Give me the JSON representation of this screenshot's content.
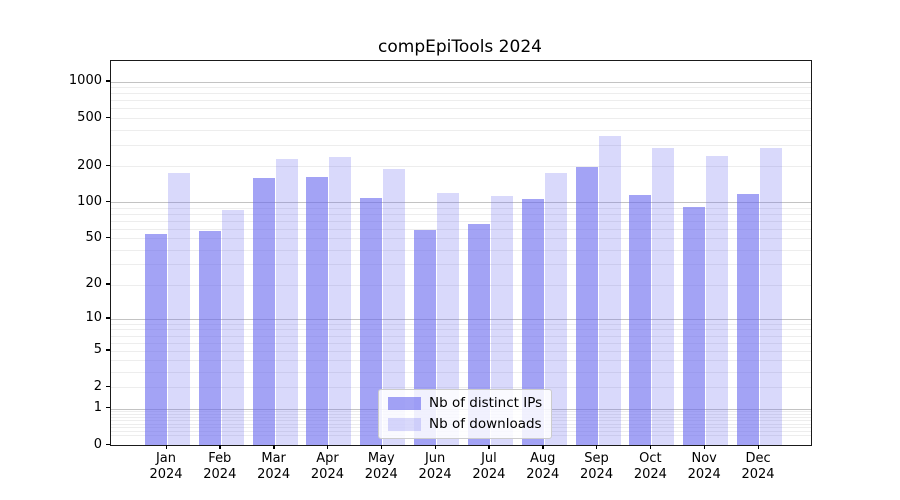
{
  "chart_data": {
    "type": "bar",
    "title": "compEpiTools 2024",
    "categories": [
      {
        "month": "Jan",
        "year": "2024"
      },
      {
        "month": "Feb",
        "year": "2024"
      },
      {
        "month": "Mar",
        "year": "2024"
      },
      {
        "month": "Apr",
        "year": "2024"
      },
      {
        "month": "May",
        "year": "2024"
      },
      {
        "month": "Jun",
        "year": "2024"
      },
      {
        "month": "Jul",
        "year": "2024"
      },
      {
        "month": "Aug",
        "year": "2024"
      },
      {
        "month": "Sep",
        "year": "2024"
      },
      {
        "month": "Oct",
        "year": "2024"
      },
      {
        "month": "Nov",
        "year": "2024"
      },
      {
        "month": "Dec",
        "year": "2024"
      }
    ],
    "series": [
      {
        "name": "Nb of distinct IPs",
        "color": "rgba(102,102,238,0.6)",
        "values": [
          54,
          57,
          158,
          163,
          108,
          59,
          66,
          106,
          196,
          114,
          92,
          118
        ]
      },
      {
        "name": "Nb of downloads",
        "color": "rgba(102,102,238,0.25)",
        "values": [
          175,
          86,
          228,
          240,
          188,
          119,
          113,
          174,
          352,
          281,
          243,
          283
        ]
      }
    ],
    "yscale": "log1p",
    "yticks": [
      0,
      1,
      2,
      5,
      10,
      20,
      50,
      100,
      200,
      500,
      1000
    ],
    "ylim": [
      0,
      1480
    ],
    "xlabel": "",
    "ylabel": "",
    "grid": "horizontal",
    "legend_position": "lower center"
  }
}
